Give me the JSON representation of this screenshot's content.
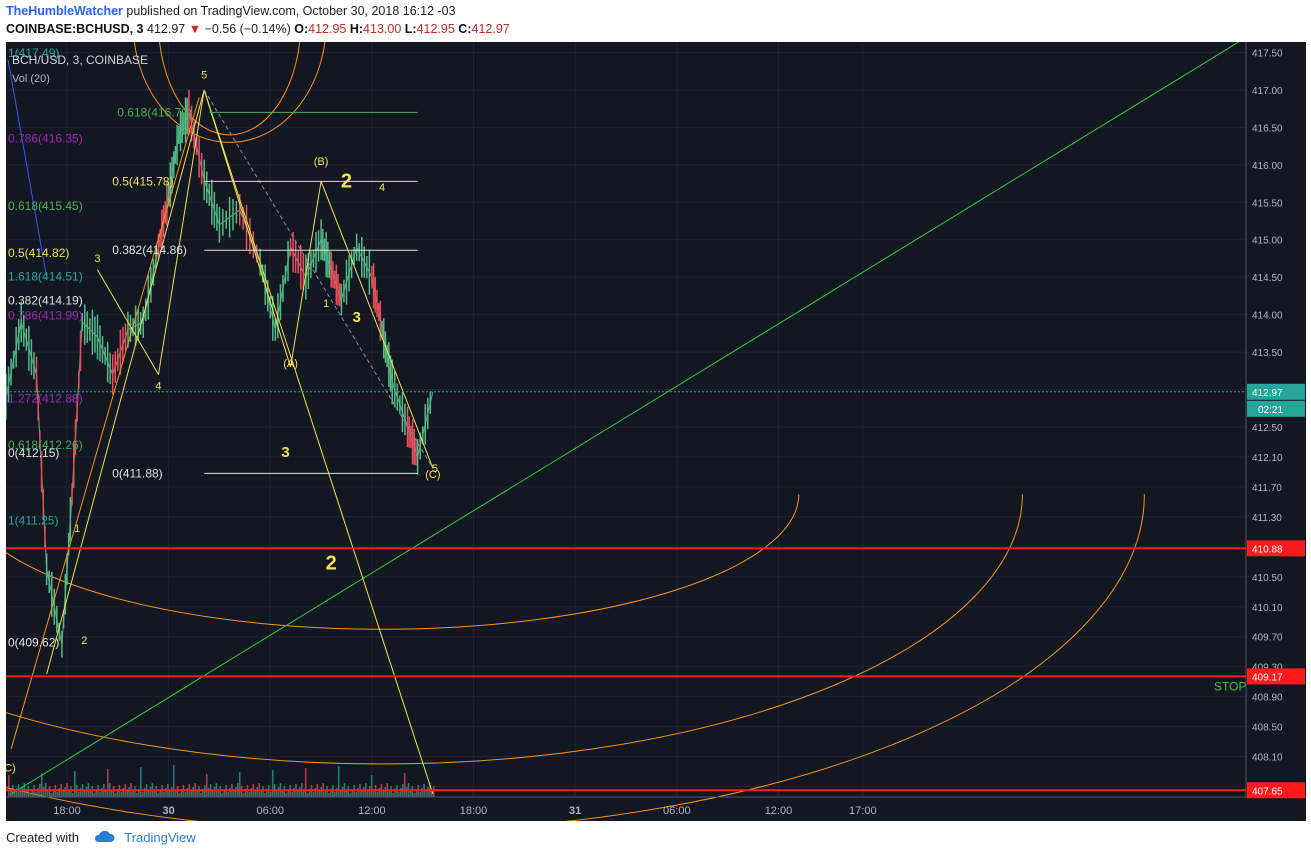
{
  "header": {
    "author": "TheHumbleWatcher",
    "published_text": "published on TradingView.com, October 30, 2018 16:12 -03",
    "symbol": "COINBASE:BCHUSD, 3",
    "last": "412.97",
    "change": "−0.56 (−0.14%)",
    "o_label": "O:",
    "o_value": "412.95",
    "h_label": "H:",
    "h_value": "413.00",
    "l_label": "L:",
    "l_value": "412.95",
    "c_label": "C:",
    "c_value": "412.97"
  },
  "legend": {
    "series": "BCH/USD, 3, COINBASE",
    "volume": "Vol (20)"
  },
  "footer": {
    "created_with": "Created with",
    "brand": "TradingView"
  },
  "colors": {
    "background": "#131722",
    "grid": "#1f2433",
    "axis_text": "#b2b5be",
    "up": "#53b987",
    "down": "#eb4d5c",
    "fib_yellow": "#f4e04d",
    "fib_white": "#e0e0e0",
    "fib_green": "#4caf50",
    "fib_purple": "#9c27b0",
    "fib_teal": "#26a69a",
    "trend_green": "#2ecc40",
    "arc_orange": "#f7931a",
    "support_red": "#ff1b1b",
    "price_tag": "#26a69a"
  },
  "chart_data": {
    "type": "line",
    "title": "BCH/USD, 3, COINBASE",
    "ylim": [
      407.6,
      417.6
    ],
    "y_ticks": [
      "407.70",
      "408.10",
      "408.50",
      "408.90",
      "409.30",
      "409.70",
      "410.10",
      "410.50",
      "410.90",
      "411.30",
      "411.70",
      "412.10",
      "412.50",
      "413.00",
      "413.50",
      "414.00",
      "414.50",
      "415.00",
      "415.50",
      "416.00",
      "416.50",
      "417.00",
      "417.50"
    ],
    "x_ticks": [
      {
        "label": "18:00",
        "t": 1.0
      },
      {
        "label": "30",
        "t": 2.0
      },
      {
        "label": "06:00",
        "t": 3.0
      },
      {
        "label": "12:00",
        "t": 4.0
      },
      {
        "label": "18:00",
        "t": 5.0
      },
      {
        "label": "31",
        "t": 6.0
      },
      {
        "label": "06:00",
        "t": 7.0
      },
      {
        "label": "12:00",
        "t": 8.0
      },
      {
        "label": "17:00",
        "t": 8.83
      }
    ],
    "xlim": [
      0.4,
      12.6
    ],
    "series": [
      {
        "values_x": [
          0.4,
          0.55,
          0.7,
          0.8,
          0.95,
          1.05,
          1.15,
          1.3,
          1.45,
          1.6,
          1.75,
          1.9,
          2.0,
          2.1,
          2.2,
          2.35,
          2.5,
          2.7,
          2.9,
          3.05,
          3.2,
          3.35,
          3.5,
          3.6,
          3.7,
          3.85,
          4.0,
          4.1,
          4.2,
          4.35,
          4.45,
          4.6
        ],
        "values_y": [
          412.9,
          413.9,
          413.2,
          410.6,
          409.6,
          411.6,
          413.9,
          413.7,
          413.2,
          413.8,
          413.9,
          414.9,
          415.6,
          416.4,
          416.7,
          415.8,
          415.2,
          415.4,
          414.7,
          413.8,
          414.9,
          414.5,
          415.0,
          414.6,
          414.2,
          414.9,
          414.5,
          413.8,
          413.1,
          412.5,
          412.1,
          412.97
        ]
      }
    ],
    "current_price": {
      "value": 412.97,
      "label": "412.97",
      "countdown": "02:21"
    },
    "horizontal_levels": [
      {
        "value": 410.88,
        "label": "410.88"
      },
      {
        "value": 409.17,
        "label": "409.17",
        "note": "STOP"
      },
      {
        "value": 407.65,
        "label": "407.65"
      }
    ],
    "fib_levels": [
      {
        "text": "1(417.49)",
        "value": 417.49,
        "color": "#26a69a"
      },
      {
        "text": "0.618(416.70)",
        "value": 416.7,
        "color": "#4caf50"
      },
      {
        "text": "0.786(416.35)",
        "value": 416.35,
        "color": "#9c27b0"
      },
      {
        "text": "0.5(415.78)",
        "value": 415.78,
        "color": "#f4e04d"
      },
      {
        "text": "0.618(415.45)",
        "value": 415.45,
        "color": "#4caf50"
      },
      {
        "text": "0.382(414.86)",
        "value": 414.86,
        "color": "#e0e0e0"
      },
      {
        "text": "0.5(414.82)",
        "value": 414.82,
        "color": "#f4e04d"
      },
      {
        "text": "1.618(414.51)",
        "value": 414.51,
        "color": "#26a69a"
      },
      {
        "text": "0.382(414.19)",
        "value": 414.19,
        "color": "#e0e0e0"
      },
      {
        "text": "0.786(413.99)",
        "value": 413.99,
        "color": "#9c27b0"
      },
      {
        "text": "1.272(412.88)",
        "value": 412.88,
        "color": "#9c27b0"
      },
      {
        "text": "0.618(412.26)",
        "value": 412.26,
        "color": "#4caf50"
      },
      {
        "text": "0(412.15)",
        "value": 412.15,
        "color": "#e0e0e0"
      },
      {
        "text": "0(411.88)",
        "value": 411.88,
        "color": "#e0e0e0"
      },
      {
        "text": "1(411.25)",
        "value": 411.25,
        "color": "#26a69a"
      },
      {
        "text": "0(409.62)",
        "value": 409.62,
        "color": "#e0e0e0"
      }
    ],
    "wave_labels": [
      {
        "text": "5",
        "t": 2.35,
        "v": 417.15
      },
      {
        "text": "(B)",
        "t": 3.5,
        "v": 416.0
      },
      {
        "text": "2",
        "t": 3.75,
        "v": 415.7
      },
      {
        "text": "4",
        "t": 4.1,
        "v": 415.65
      },
      {
        "text": "3",
        "t": 1.3,
        "v": 414.7
      },
      {
        "text": "4",
        "t": 1.9,
        "v": 413.0
      },
      {
        "text": "(A)",
        "t": 3.2,
        "v": 413.3
      },
      {
        "text": "1",
        "t": 3.55,
        "v": 414.1
      },
      {
        "text": "3",
        "t": 3.85,
        "v": 413.9
      },
      {
        "text": "1",
        "t": 1.1,
        "v": 411.1
      },
      {
        "text": "2",
        "t": 1.17,
        "v": 409.6
      },
      {
        "text": "3",
        "t": 3.15,
        "v": 412.1
      },
      {
        "text": "2",
        "t": 3.6,
        "v": 410.6
      },
      {
        "text": "(C)",
        "t": 4.6,
        "v": 411.82
      },
      {
        "text": "5",
        "t": 4.62,
        "v": 411.9
      },
      {
        "text": "(C)",
        "t": 0.42,
        "v": 407.9
      }
    ]
  }
}
